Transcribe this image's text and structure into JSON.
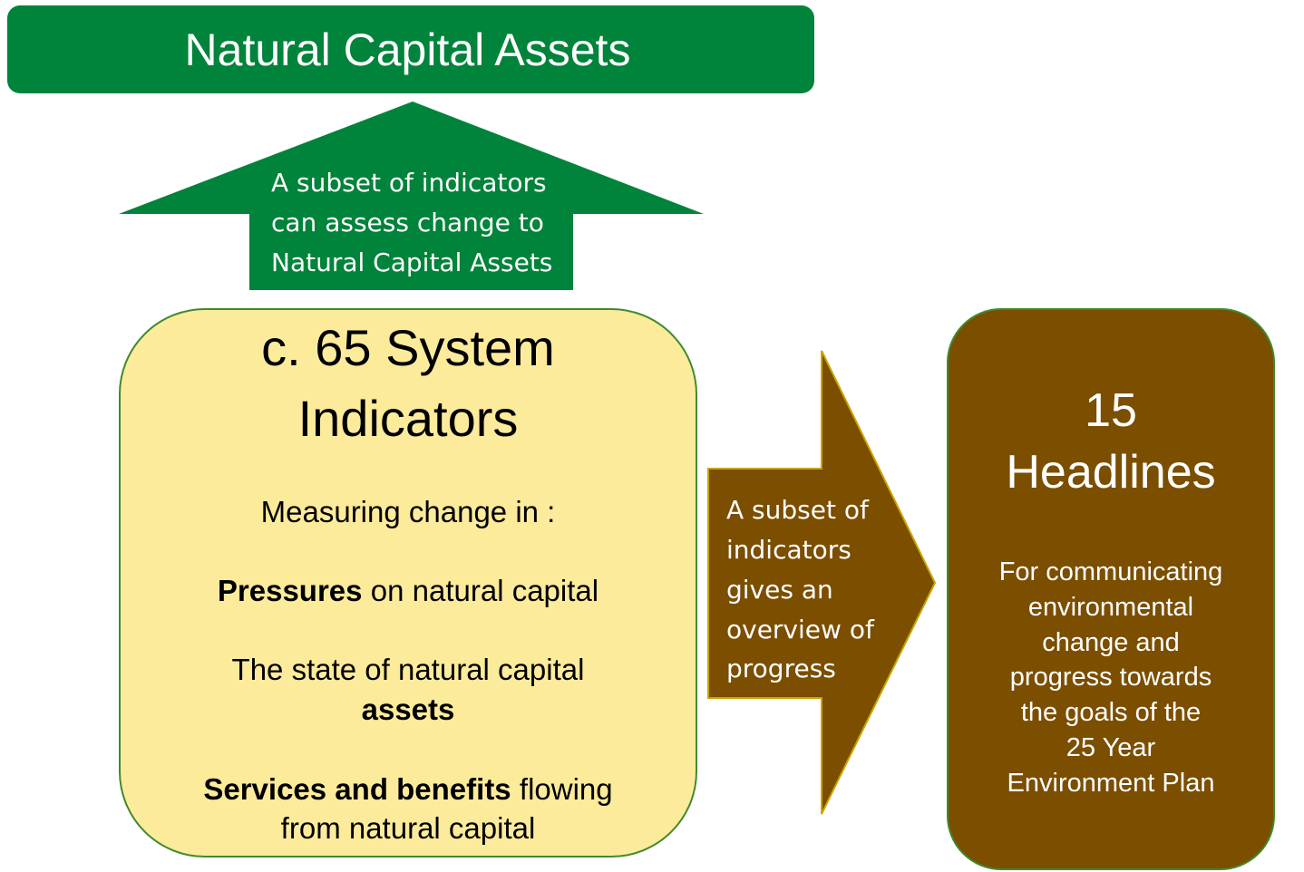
{
  "banner": {
    "title": "Natural Capital Assets"
  },
  "up_arrow": {
    "lines": [
      "A subset of indicators",
      "can assess change to",
      "Natural Capital Assets"
    ]
  },
  "system_box": {
    "title_lines": [
      "c. 65 System",
      "Indicators"
    ],
    "intro": "Measuring change in :",
    "pressures": {
      "bold": "Pressures",
      "rest": "on natural capital"
    },
    "state": {
      "line": "The state of natural capital",
      "bold": "assets"
    },
    "services": {
      "bold": "Services and benefits",
      "rest": "flowing",
      "line2": "from natural capital"
    }
  },
  "right_arrow": {
    "lines": [
      "A subset of",
      "indicators",
      "gives an",
      "overview of",
      "progress"
    ]
  },
  "headline_box": {
    "title_lines": [
      "15",
      "Headlines"
    ],
    "description_lines": [
      "For communicating",
      "environmental",
      "change and",
      "progress towards",
      "the goals of the",
      "25 Year",
      "Environment Plan"
    ]
  }
}
